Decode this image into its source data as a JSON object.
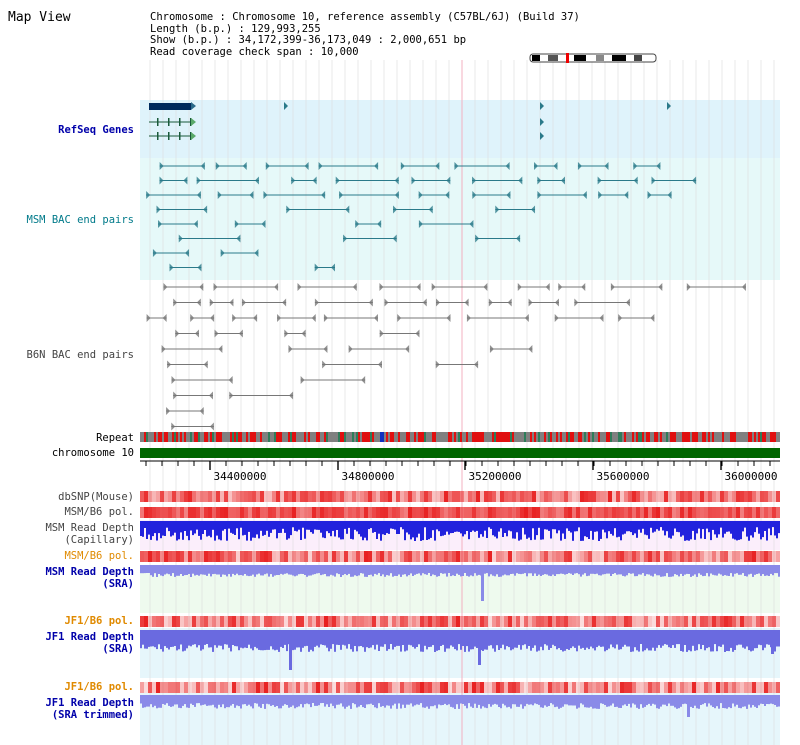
{
  "view_title": "Map View",
  "info": {
    "chromosome_label": "Chromosome",
    "chromosome_value": "Chromosome 10, reference assembly (C57BL/6J) (Build 37)",
    "length_label": "Length (b.p.)",
    "length_value": "129,993,255",
    "show_label": "Show (b.p.)",
    "show_value": "34,172,399-36,173,049 : 2,000,651 bp",
    "coverage_label": "Read coverage check span",
    "coverage_value": "10,000"
  },
  "tracks": {
    "refseq": "RefSeq Genes",
    "msm_bac": "MSM BAC end pairs",
    "b6n_bac": "B6N BAC end pairs",
    "repeat": "Repeat",
    "chromosome": "chromosome 10",
    "dbsnp": "dbSNP(Mouse)",
    "msm_b6_pol_1": "MSM/B6 pol.",
    "msm_depth_cap_1": "MSM Read Depth",
    "msm_depth_cap_2": "(Capillary)",
    "msm_b6_pol_2": "MSM/B6 pol.",
    "msm_depth_sra_1": "MSM Read Depth",
    "msm_depth_sra_2": "(SRA)",
    "jf1_b6_pol_1": "JF1/B6 pol.",
    "jf1_depth_sra_1": "JF1 Read Depth",
    "jf1_depth_sra_2": "(SRA)",
    "jf1_b6_pol_2": "JF1/B6 pol.",
    "jf1_depth_trim_1": "JF1 Read Depth",
    "jf1_depth_trim_2": "(SRA trimmed)"
  },
  "axis": {
    "ticks": [
      "34400000",
      "34800000",
      "35200000",
      "35600000",
      "36000000"
    ]
  },
  "colors": {
    "refseq_bg": "#dff3fb",
    "msm_bac_bg": "#e6f9f9",
    "depth_bg": "#eef8f8",
    "capillary_bg": "#fbeefb",
    "chromosome": "#006600",
    "msm_bac_feature": "#2a7a8a",
    "b6n_bac_feature": "#666666",
    "depth_bar": "#3333dd",
    "pol_red": "#ee3333"
  }
}
